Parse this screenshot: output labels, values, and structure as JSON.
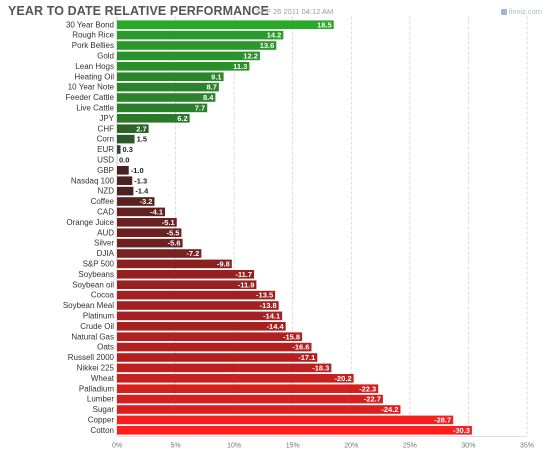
{
  "header": {
    "title": "YEAR TO DATE RELATIVE PERFORMANCE",
    "timestamp": "SEP 26 2011 04:12 AM",
    "watermark": "finviz.com"
  },
  "chart_data": {
    "type": "bar",
    "orientation": "horizontal",
    "title": "YEAR TO DATE RELATIVE PERFORMANCE",
    "categories": [
      "30 Year Bond",
      "Rough Rice",
      "Pork Bellies",
      "Gold",
      "Lean Hogs",
      "Heating Oil",
      "10 Year Note",
      "Feeder Cattle",
      "Live Cattle",
      "JPY",
      "CHF",
      "Corn",
      "EUR",
      "USD",
      "GBP",
      "Nasdaq 100",
      "NZD",
      "Coffee",
      "CAD",
      "Orange Juice",
      "AUD",
      "Silver",
      "DJIA",
      "S&P 500",
      "Soybeans",
      "Soybean oil",
      "Cocoa",
      "Soybean Meal",
      "Platinum",
      "Crude Oil",
      "Natural Gas",
      "Oats",
      "Russell 2000",
      "Nikkei 225",
      "Wheat",
      "Palladium",
      "Lumber",
      "Sugar",
      "Copper",
      "Cotton"
    ],
    "values": [
      18.5,
      14.2,
      13.6,
      12.2,
      11.3,
      9.1,
      8.7,
      8.4,
      7.7,
      6.2,
      2.7,
      1.5,
      0.3,
      0.0,
      -1.0,
      -1.3,
      -1.4,
      -3.2,
      -4.1,
      -5.1,
      -5.5,
      -5.6,
      -7.2,
      -9.8,
      -11.7,
      -11.9,
      -13.5,
      -13.8,
      -14.1,
      -14.4,
      -15.8,
      -16.6,
      -17.1,
      -18.3,
      -20.2,
      -22.3,
      -22.7,
      -24.2,
      -28.7,
      -30.3
    ],
    "value_labels": [
      "18.5",
      "14.2",
      "13.6",
      "12.2",
      "11.3",
      "9.1",
      "8.7",
      "8.4",
      "7.7",
      "6.2",
      "2.7",
      "1.5",
      "0.3",
      "0.0",
      "-1.0",
      "-1.3",
      "-1.4",
      "-3.2",
      "-4.1",
      "-5.1",
      "-5.5",
      "-5.6",
      "-7.2",
      "-9.8",
      "-11.7",
      "-11.9",
      "-13.5",
      "-13.8",
      "-14.1",
      "-14.4",
      "-15.8",
      "-16.6",
      "-17.1",
      "-18.3",
      "-20.2",
      "-22.3",
      "-22.7",
      "-24.2",
      "-28.7",
      "-30.3"
    ],
    "xticks": [
      "0%",
      "5%",
      "10%",
      "15%",
      "20%",
      "25%",
      "30%",
      "35%"
    ],
    "xlim": [
      0,
      35
    ],
    "bar_length": "absolute value",
    "grid": "vertical dashed",
    "colors": {
      "positive_strong": "#2aa82a",
      "positive_weak": "#2c3e2c",
      "neutral": "#1e1e1e",
      "negative_weak": "#3a2222",
      "negative_strong": "#ff1e1e",
      "grid": "#cfcfcf",
      "axis_text": "#777777",
      "label_text": "#333333"
    }
  }
}
